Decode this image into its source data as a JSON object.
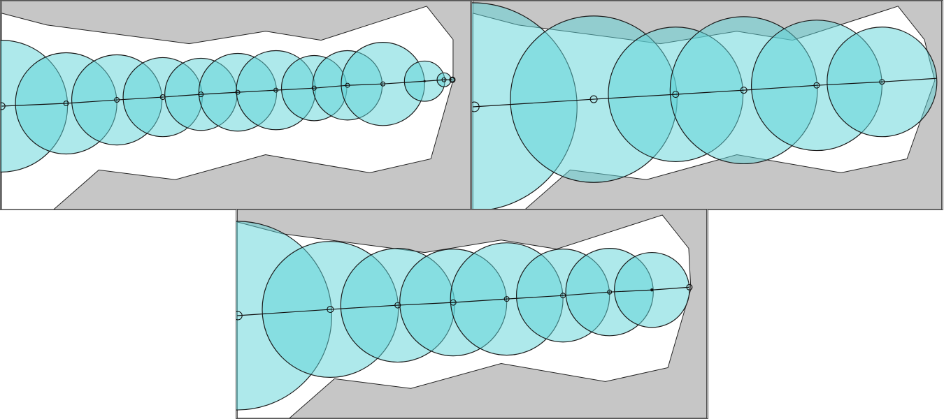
{
  "figure": {
    "panels": [
      {
        "id": "panel-a",
        "description_name": "fine-disk-cover",
        "disk_count": 13
      },
      {
        "id": "panel-b",
        "description_name": "coarse-disk-cover",
        "disk_count": 6
      },
      {
        "id": "panel-c",
        "description_name": "medium-disk-cover",
        "disk_count": 9
      }
    ]
  },
  "colors": {
    "disk_fill": "#5dd3d8",
    "obstacle_fill": "#c6c6c6",
    "free_space": "#ffffff",
    "stroke": "#1a1a1a"
  }
}
